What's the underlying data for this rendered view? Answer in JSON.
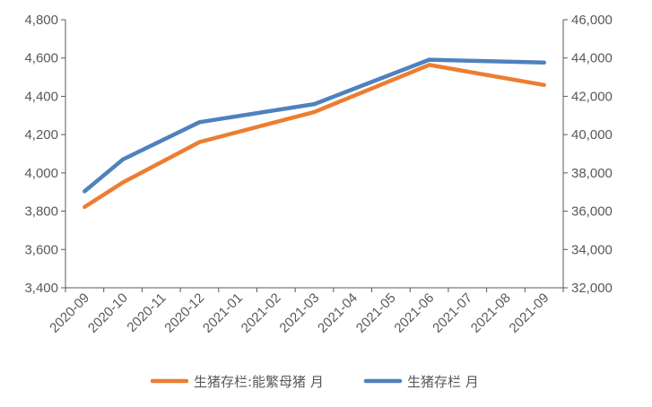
{
  "chart_data": {
    "type": "line",
    "title": "",
    "xlabel": "",
    "ylabel": "",
    "y2label": "",
    "grid": false,
    "legend_position": "bottom",
    "x": [
      "2020-09",
      "2020-10",
      "2020-11",
      "2020-12",
      "2021-01",
      "2021-02",
      "2021-03",
      "2021-04",
      "2021-05",
      "2021-06",
      "2021-07",
      "2021-08",
      "2021-09"
    ],
    "ylim": [
      3400,
      4800
    ],
    "yticks": [
      "3,400",
      "3,600",
      "3,800",
      "4,000",
      "4,200",
      "4,400",
      "4,600",
      "4,800"
    ],
    "y2lim": [
      32000,
      46000
    ],
    "y2ticks": [
      "32,000",
      "34,000",
      "36,000",
      "38,000",
      "40,000",
      "42,000",
      "44,000",
      "46,000"
    ],
    "series": [
      {
        "name": "生猪存栏:能繁母猪 月",
        "axis": "left",
        "color": "#ED7D31",
        "points": [
          {
            "x": "2020-09",
            "y": 3822
          },
          {
            "x": "2020-10",
            "y": 3950
          },
          {
            "x": "2020-12",
            "y": 4161
          },
          {
            "x": "2021-03",
            "y": 4318
          },
          {
            "x": "2021-06",
            "y": 4564
          },
          {
            "x": "2021-09",
            "y": 4459
          }
        ]
      },
      {
        "name": "生猪存栏 月",
        "axis": "right",
        "color": "#4F81BD",
        "points": [
          {
            "x": "2020-09",
            "y": 37039
          },
          {
            "x": "2020-10",
            "y": 38700
          },
          {
            "x": "2020-12",
            "y": 40650
          },
          {
            "x": "2021-03",
            "y": 41595
          },
          {
            "x": "2021-06",
            "y": 43911
          },
          {
            "x": "2021-09",
            "y": 43764
          }
        ]
      }
    ]
  }
}
